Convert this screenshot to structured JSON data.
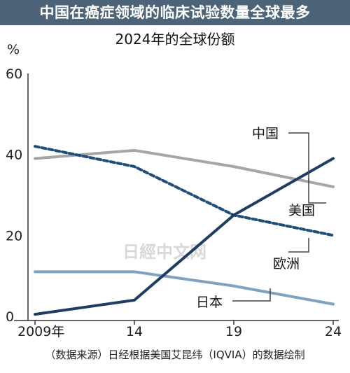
{
  "header": {
    "title": "中国在癌症领域的临床试验数量全球最多",
    "subtitle": "2024年的全球份额"
  },
  "footer": {
    "source": "（数据来源）日经根据美国艾昆纬（IQVIA）的数据绘制"
  },
  "watermark": "日經中文网",
  "chart_data": {
    "type": "line",
    "title": "中国在癌症领域的临床试验数量全球最多",
    "subtitle": "2024年的全球份额",
    "ylabel": "%",
    "ylim": [
      0,
      60
    ],
    "yticks": [
      0,
      20,
      40,
      60
    ],
    "x": [
      2009,
      2014,
      2019,
      2024
    ],
    "xtick_labels": [
      "2009年",
      "14",
      "19",
      "24"
    ],
    "grid": false,
    "series": [
      {
        "name": "中国",
        "values": [
          0.5,
          4,
          25,
          39
        ],
        "color": "#1f3d63",
        "style": "solid"
      },
      {
        "name": "美国",
        "values": [
          39,
          41,
          37,
          32
        ],
        "color": "#a6a6a6",
        "style": "solid"
      },
      {
        "name": "欧洲",
        "values": [
          42,
          37,
          25,
          20
        ],
        "color": "#1f4e7a",
        "style": "dashed"
      },
      {
        "name": "日本",
        "values": [
          11,
          11,
          7.5,
          3
        ],
        "color": "#7ea3c2",
        "style": "solid"
      }
    ],
    "annotations": [
      "中国",
      "美国",
      "欧洲",
      "日本"
    ]
  }
}
